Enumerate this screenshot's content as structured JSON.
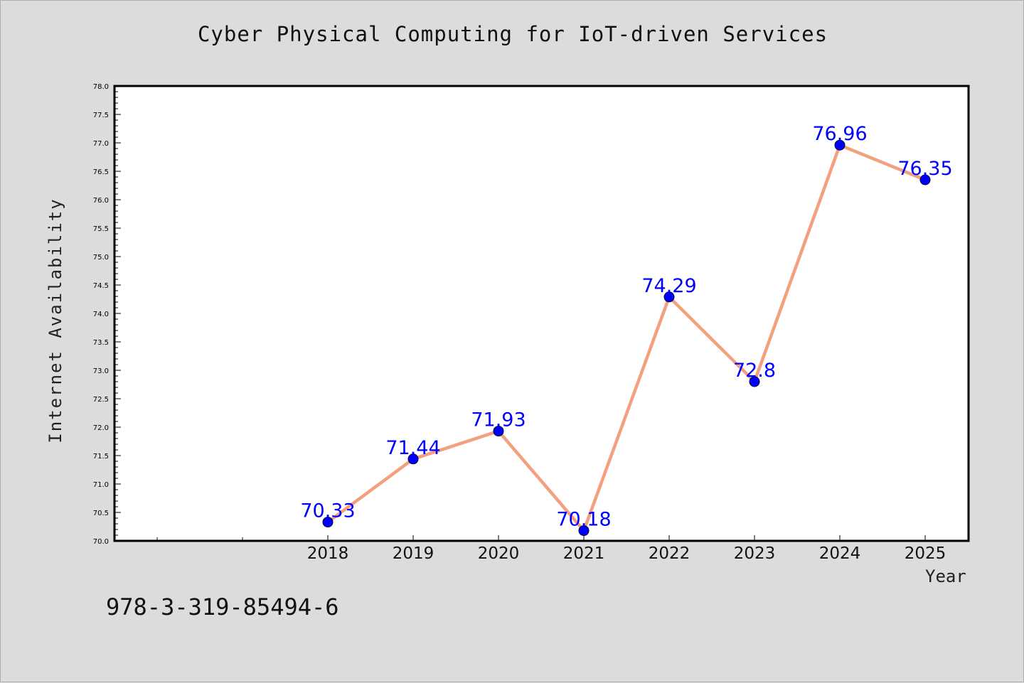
{
  "chart_data": {
    "type": "line",
    "title": "Cyber Physical Computing for IoT-driven Services",
    "xlabel": "Year",
    "ylabel": "Internet Availability",
    "categories": [
      "2018",
      "2019",
      "2020",
      "2021",
      "2022",
      "2023",
      "2024",
      "2025"
    ],
    "series": [
      {
        "values": [
          70.33,
          71.44,
          71.93,
          70.18,
          74.29,
          72.8,
          76.96,
          76.35
        ],
        "value_labels": [
          "70.33",
          "71.44",
          "71.93",
          "70.18",
          "74.29",
          "72.8",
          "76.96",
          "76.35"
        ],
        "line_color": "#f4a07e",
        "marker_color": "#0000ff",
        "label_color": "#0000ff"
      }
    ],
    "ylim": [
      70.0,
      78.0
    ],
    "yticks": [
      "70.0",
      "70.5",
      "71.0",
      "71.5",
      "72.0",
      "72.5",
      "73.0",
      "73.5",
      "74.0",
      "74.5",
      "75.0",
      "75.5",
      "76.0",
      "76.5",
      "77.0",
      "77.5",
      "78.0"
    ],
    "x_extra_minor_ticks_before": 2,
    "grid": false,
    "legend": "none",
    "plot_background": "#ffffff",
    "figure_background": "#dcdcdc"
  },
  "footer_text": "978-3-319-85494-6"
}
